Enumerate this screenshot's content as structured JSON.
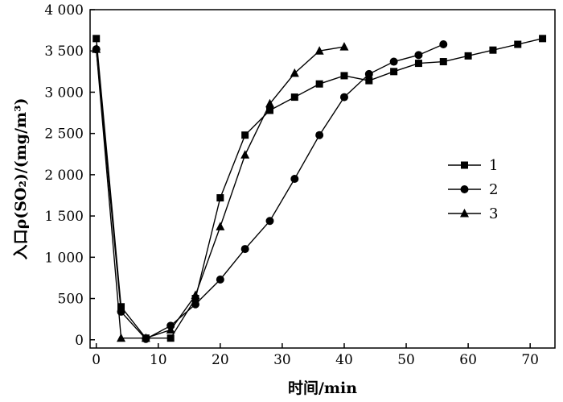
{
  "chart_data": {
    "type": "line",
    "xlabel": "时间/min",
    "ylabel": "入口ρ(SO₂)/(mg/m³)",
    "xlim": [
      -1,
      74
    ],
    "ylim": [
      -100,
      4000
    ],
    "xticks": [
      0,
      10,
      20,
      30,
      40,
      50,
      60,
      70
    ],
    "xtick_labels": [
      "0",
      "10",
      "20",
      "30",
      "40",
      "50",
      "60",
      "70"
    ],
    "yticks": [
      0,
      500,
      1000,
      1500,
      2000,
      2500,
      3000,
      3500,
      4000
    ],
    "ytick_labels": [
      "0",
      "500",
      "1 000",
      "1 500",
      "2 000",
      "2 500",
      "3 000",
      "3 500",
      "4 000"
    ],
    "grid": false,
    "legend_position": "right",
    "series": [
      {
        "name": "1",
        "marker": "square",
        "points": [
          [
            0,
            3650
          ],
          [
            4,
            400
          ],
          [
            8,
            20
          ],
          [
            12,
            20
          ],
          [
            16,
            500
          ],
          [
            20,
            1720
          ],
          [
            24,
            2480
          ],
          [
            28,
            2780
          ],
          [
            32,
            2940
          ],
          [
            36,
            3100
          ],
          [
            40,
            3200
          ],
          [
            44,
            3140
          ],
          [
            48,
            3250
          ],
          [
            52,
            3350
          ],
          [
            56,
            3370
          ],
          [
            60,
            3440
          ],
          [
            64,
            3510
          ],
          [
            68,
            3580
          ],
          [
            72,
            3650
          ]
        ]
      },
      {
        "name": "2",
        "marker": "circle",
        "points": [
          [
            0,
            3520
          ],
          [
            4,
            340
          ],
          [
            8,
            10
          ],
          [
            12,
            170
          ],
          [
            16,
            430
          ],
          [
            20,
            730
          ],
          [
            24,
            1100
          ],
          [
            28,
            1440
          ],
          [
            32,
            1950
          ],
          [
            36,
            2480
          ],
          [
            40,
            2940
          ],
          [
            44,
            3220
          ],
          [
            48,
            3370
          ],
          [
            52,
            3450
          ],
          [
            56,
            3580
          ]
        ]
      },
      {
        "name": "3",
        "marker": "triangle",
        "points": [
          [
            0,
            3520
          ],
          [
            4,
            20
          ],
          [
            8,
            20
          ],
          [
            12,
            120
          ],
          [
            16,
            540
          ],
          [
            20,
            1370
          ],
          [
            24,
            2240
          ],
          [
            28,
            2860
          ],
          [
            32,
            3230
          ],
          [
            36,
            3500
          ],
          [
            40,
            3550
          ]
        ]
      }
    ]
  }
}
